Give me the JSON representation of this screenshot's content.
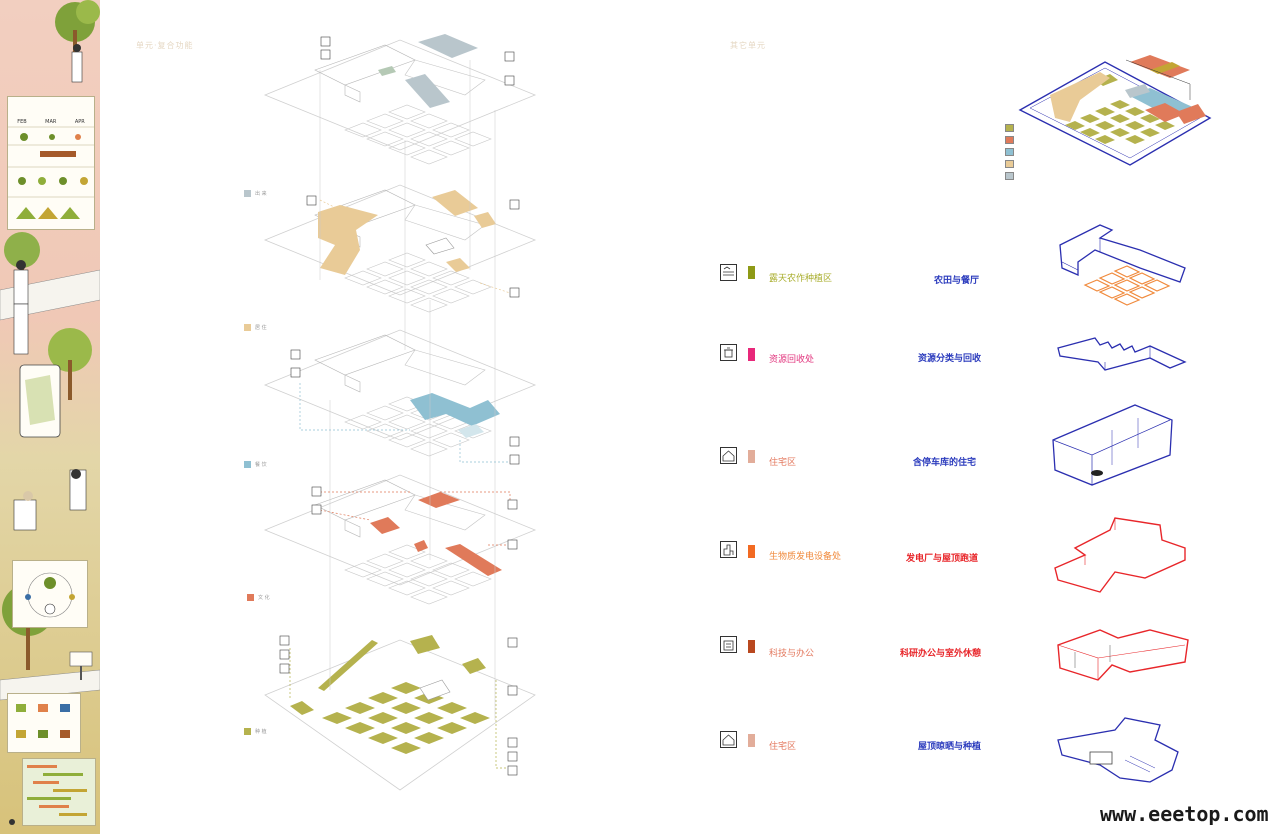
{
  "headers": {
    "left": "单元·复合功能",
    "right": "其它单元"
  },
  "layer_legend": [
    {
      "label": "出 来",
      "color": "#b9c6cc"
    },
    {
      "label": "居 住",
      "color": "#e9cb97"
    },
    {
      "label": "餐 饮",
      "color": "#8fc0d2"
    },
    {
      "label": "文 化",
      "color": "#e07a5a"
    },
    {
      "label": "种 植",
      "color": "#b5b24e"
    }
  ],
  "map_legend_colors": [
    "#b5b24e",
    "#e07a5a",
    "#8fc0d2",
    "#e9cb97",
    "#b9c6cc"
  ],
  "units": [
    {
      "name": "露天农作种植区",
      "desc": "农田与餐厅",
      "name_color": "#a9ae2e",
      "desc_color": "#2b3bbd",
      "swatch": "#8e9a16",
      "icon": "field-icon",
      "shape_color": "#2b2fb0",
      "accent_color": "#f08a3c"
    },
    {
      "name": "资源回收处",
      "desc": "资源分类与回收",
      "name_color": "#e2357e",
      "desc_color": "#2b3bbd",
      "swatch": "#e8287a",
      "icon": "recycle-icon",
      "shape_color": "#2b2fb0"
    },
    {
      "name": "住宅区",
      "desc": "含停车库的住宅",
      "name_color": "#e3785e",
      "desc_color": "#2b3bbd",
      "swatch": "#e2ad9a",
      "icon": "house-icon",
      "shape_color": "#2b2fb0"
    },
    {
      "name": "生物质发电设备处",
      "desc": "发电厂与屋顶跑道",
      "name_color": "#f08a3c",
      "desc_color": "#e8262a",
      "swatch": "#f26a22",
      "icon": "power-plant-icon",
      "shape_color": "#e8262a"
    },
    {
      "name": "科技与办公",
      "desc": "科研办公与室外休憩",
      "name_color": "#e3785e",
      "desc_color": "#e8262a",
      "swatch": "#b9481f",
      "icon": "office-icon",
      "shape_color": "#e8262a"
    },
    {
      "name": "住宅区",
      "desc": "屋顶晾晒与种植",
      "name_color": "#e3785e",
      "desc_color": "#2b3bbd",
      "swatch": "#e2ad9a",
      "icon": "house-icon",
      "shape_color": "#2b2fb0"
    }
  ],
  "sidebar": {
    "months": [
      "FEB",
      "MAR",
      "APR"
    ]
  },
  "watermark": "www.eeetop.com"
}
